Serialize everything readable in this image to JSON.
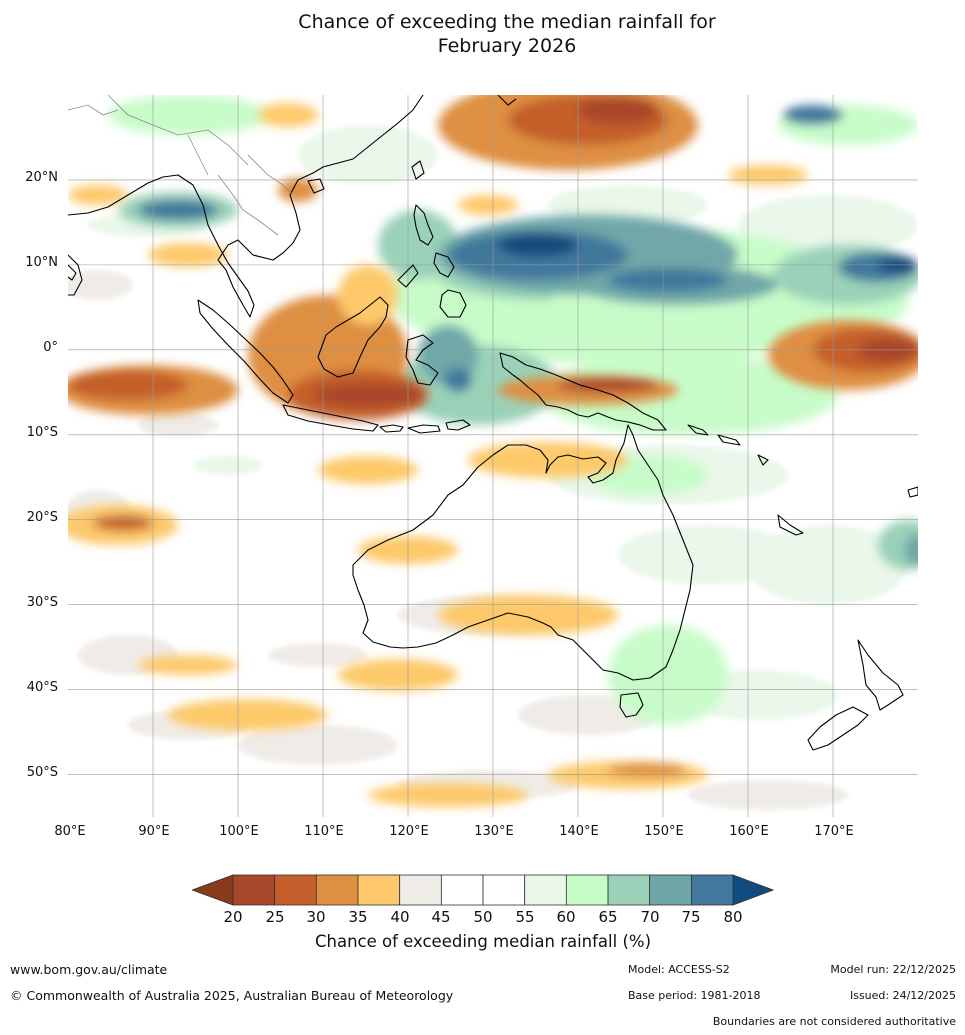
{
  "title_line1": "Chance of exceeding the median rainfall for",
  "title_line2": "February 2026",
  "map": {
    "lon_range": [
      80,
      180
    ],
    "lat_range": [
      -55,
      30
    ],
    "lat_ticks": [
      "20°N",
      "10°N",
      "0°",
      "10°S",
      "20°S",
      "30°S",
      "40°S",
      "50°S"
    ],
    "lon_ticks": [
      "80°E",
      "90°E",
      "100°E",
      "110°E",
      "120°E",
      "130°E",
      "140°E",
      "150°E",
      "160°E",
      "170°E"
    ]
  },
  "colorbar": {
    "labels": [
      "20",
      "25",
      "30",
      "35",
      "40",
      "45",
      "50",
      "55",
      "60",
      "65",
      "70",
      "75",
      "80"
    ],
    "colors": [
      "#8a3a1c",
      "#a9472a",
      "#c45f2c",
      "#de8f42",
      "#fdc96a",
      "#efebe7",
      "#ffffff",
      "#ffffff",
      "#e9f7e9",
      "#c7fcc9",
      "#9ad1b8",
      "#6fa7a9",
      "#41789c",
      "#124c7e"
    ],
    "title": "Chance of exceeding median rainfall (%)"
  },
  "footer": {
    "url": "www.bom.gov.au/climate",
    "copyright": "© Commonwealth of Australia 2025, Australian Bureau of Meteorology",
    "model": "Model: ACCESS-S2",
    "base_period": "Base period: 1981-2018",
    "model_run": "Model run: 22/12/2025",
    "issued": "Issued: 24/12/2025",
    "disclaimer": "Boundaries are not considered authoritative"
  }
}
